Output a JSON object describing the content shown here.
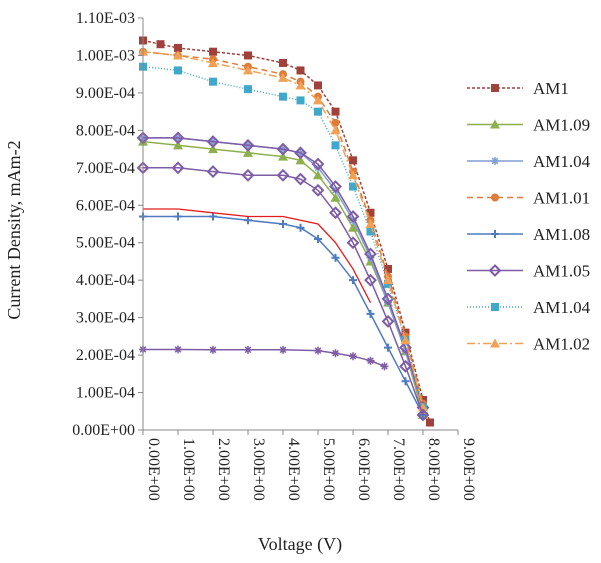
{
  "chart_data": {
    "type": "scatter",
    "title": "",
    "xlabel": "Voltage (V)",
    "ylabel": "Current Density, mAm-2",
    "xlim": [
      0,
      9
    ],
    "ylim": [
      0,
      0.0011
    ],
    "x_ticks": [
      "0.00E+00",
      "1.00E+00",
      "2.00E+00",
      "3.00E+00",
      "4.00E+00",
      "5.00E+00",
      "6.00E+00",
      "7.00E+00",
      "8.00E+00",
      "9.00E+00"
    ],
    "y_ticks": [
      "0.00E+00",
      "1.00E-04",
      "2.00E-04",
      "3.00E-04",
      "4.00E-04",
      "5.00E-04",
      "6.00E-04",
      "7.00E-04",
      "8.00E-04",
      "9.00E-04",
      "1.00E-03",
      "1.10E-03"
    ],
    "grid": false,
    "legend_position": "right",
    "series": [
      {
        "name": "AM1",
        "color": "#A0413C",
        "marker": "square",
        "dash": "3,2",
        "points": [
          [
            0,
            0.00104
          ],
          [
            0.5,
            0.00103
          ],
          [
            1,
            0.00102
          ],
          [
            2,
            0.00101
          ],
          [
            3,
            0.001
          ],
          [
            4,
            0.00098
          ],
          [
            4.5,
            0.00096
          ],
          [
            5,
            0.00092
          ],
          [
            5.5,
            0.00085
          ],
          [
            6,
            0.00072
          ],
          [
            6.5,
            0.00058
          ],
          [
            7,
            0.00043
          ],
          [
            7.5,
            0.00026
          ],
          [
            8,
            8e-05
          ],
          [
            8.2,
            2e-05
          ]
        ]
      },
      {
        "name": "AM1.09",
        "color": "#8DB04E",
        "marker": "triangle",
        "dash": "",
        "points": [
          [
            0,
            0.00077
          ],
          [
            1,
            0.00076
          ],
          [
            2,
            0.00075
          ],
          [
            3,
            0.00074
          ],
          [
            4,
            0.00073
          ],
          [
            4.5,
            0.00072
          ],
          [
            5,
            0.00068
          ],
          [
            5.5,
            0.00062
          ],
          [
            6,
            0.00054
          ],
          [
            6.5,
            0.00045
          ],
          [
            7,
            0.00034
          ],
          [
            7.5,
            0.00021
          ],
          [
            8,
            4e-05
          ]
        ]
      },
      {
        "name": "AM1.04",
        "color": "#7F9ED3",
        "marker": "star",
        "dash": "",
        "points": [
          [
            0,
            0.00078
          ],
          [
            1,
            0.00078
          ],
          [
            2,
            0.00077
          ],
          [
            3,
            0.00076
          ],
          [
            4,
            0.00075
          ],
          [
            4.5,
            0.00074
          ],
          [
            5,
            0.0007
          ],
          [
            5.5,
            0.00064
          ],
          [
            6,
            0.00056
          ],
          [
            6.5,
            0.00046
          ],
          [
            7,
            0.00034
          ],
          [
            7.5,
            0.00021
          ],
          [
            8,
            6e-05
          ]
        ]
      },
      {
        "name": "AM1.01",
        "color": "#E07B39",
        "marker": "circle",
        "dash": "6,4",
        "points": [
          [
            0,
            0.00101
          ],
          [
            1,
            0.001
          ],
          [
            2,
            0.00099
          ],
          [
            3,
            0.00097
          ],
          [
            4,
            0.00095
          ],
          [
            4.5,
            0.00093
          ],
          [
            5,
            0.00089
          ],
          [
            5.5,
            0.00082
          ],
          [
            6,
            0.00069
          ],
          [
            6.5,
            0.00056
          ],
          [
            7,
            0.00041
          ],
          [
            7.5,
            0.00025
          ],
          [
            8,
            7e-05
          ]
        ]
      },
      {
        "name": "AM1.08",
        "color": "#4F7BC1",
        "marker": "plus",
        "dash": "",
        "points": [
          [
            0,
            0.00057
          ],
          [
            1,
            0.00057
          ],
          [
            2,
            0.00057
          ],
          [
            3,
            0.00056
          ],
          [
            4,
            0.00055
          ],
          [
            4.5,
            0.00054
          ],
          [
            5,
            0.00051
          ],
          [
            5.5,
            0.00046
          ],
          [
            6,
            0.0004
          ],
          [
            6.5,
            0.00031
          ],
          [
            7,
            0.00022
          ],
          [
            7.5,
            0.00013
          ],
          [
            8,
            4e-05
          ]
        ]
      },
      {
        "name": "AM1.05",
        "color": "#7E5CA6",
        "marker": "diamond",
        "dash": "",
        "points": [
          [
            0,
            0.00078
          ],
          [
            1,
            0.00078
          ],
          [
            2,
            0.00077
          ],
          [
            3,
            0.00076
          ],
          [
            4,
            0.00075
          ],
          [
            4.5,
            0.00074
          ],
          [
            5,
            0.00071
          ],
          [
            5.5,
            0.00065
          ],
          [
            6,
            0.00057
          ],
          [
            6.5,
            0.00047
          ],
          [
            7,
            0.00035
          ],
          [
            7.5,
            0.00022
          ],
          [
            8,
            6e-05
          ]
        ]
      },
      {
        "name": "AM1.04",
        "color": "#3FA8CB",
        "marker": "square",
        "dash": "1,2",
        "points": [
          [
            0,
            0.00097
          ],
          [
            1,
            0.00096
          ],
          [
            2,
            0.00093
          ],
          [
            3,
            0.00091
          ],
          [
            4,
            0.00089
          ],
          [
            4.5,
            0.00088
          ],
          [
            5,
            0.00085
          ],
          [
            5.5,
            0.00076
          ],
          [
            6,
            0.00065
          ],
          [
            6.5,
            0.00053
          ],
          [
            7,
            0.00039
          ],
          [
            7.5,
            0.00024
          ],
          [
            8,
            6e-05
          ]
        ]
      },
      {
        "name": "AM1.02",
        "color": "#F2A154",
        "marker": "triangle",
        "dash": "8,3,2,3",
        "points": [
          [
            0,
            0.00101
          ],
          [
            1,
            0.001
          ],
          [
            2,
            0.00098
          ],
          [
            3,
            0.00096
          ],
          [
            4,
            0.00094
          ],
          [
            4.5,
            0.00092
          ],
          [
            5,
            0.00088
          ],
          [
            5.5,
            0.0008
          ],
          [
            6,
            0.00068
          ],
          [
            6.5,
            0.00055
          ],
          [
            7,
            0.0004
          ],
          [
            7.5,
            0.00024
          ],
          [
            8,
            6e-05
          ]
        ]
      },
      {
        "color": "#E31A1C",
        "marker": "none",
        "dash": "",
        "legend": false,
        "points": [
          [
            0,
            0.00059
          ],
          [
            1,
            0.00059
          ],
          [
            2,
            0.00058
          ],
          [
            3,
            0.00057
          ],
          [
            4,
            0.00057
          ],
          [
            5,
            0.00055
          ],
          [
            5.5,
            0.0005
          ],
          [
            6,
            0.00043
          ],
          [
            6.5,
            0.00034
          ]
        ]
      },
      {
        "color": "#7E5CA6",
        "marker": "diamond",
        "dash": "",
        "legend": false,
        "points": [
          [
            0,
            0.0007
          ],
          [
            1,
            0.0007
          ],
          [
            2,
            0.00069
          ],
          [
            3,
            0.00068
          ],
          [
            4,
            0.00068
          ],
          [
            4.5,
            0.00067
          ],
          [
            5,
            0.00064
          ],
          [
            5.5,
            0.00058
          ],
          [
            6,
            0.0005
          ],
          [
            6.5,
            0.0004
          ],
          [
            7,
            0.00029
          ],
          [
            7.5,
            0.00017
          ],
          [
            8,
            4e-05
          ]
        ]
      },
      {
        "color": "#7E5CA6",
        "marker": "star",
        "dash": "",
        "legend": false,
        "points": [
          [
            0,
            0.000215
          ],
          [
            1,
            0.000215
          ],
          [
            2,
            0.000214
          ],
          [
            3,
            0.000214
          ],
          [
            4,
            0.000214
          ],
          [
            5,
            0.000212
          ],
          [
            5.5,
            0.000205
          ],
          [
            6,
            0.000197
          ],
          [
            6.5,
            0.000185
          ],
          [
            6.9,
            0.00017
          ]
        ]
      }
    ]
  }
}
